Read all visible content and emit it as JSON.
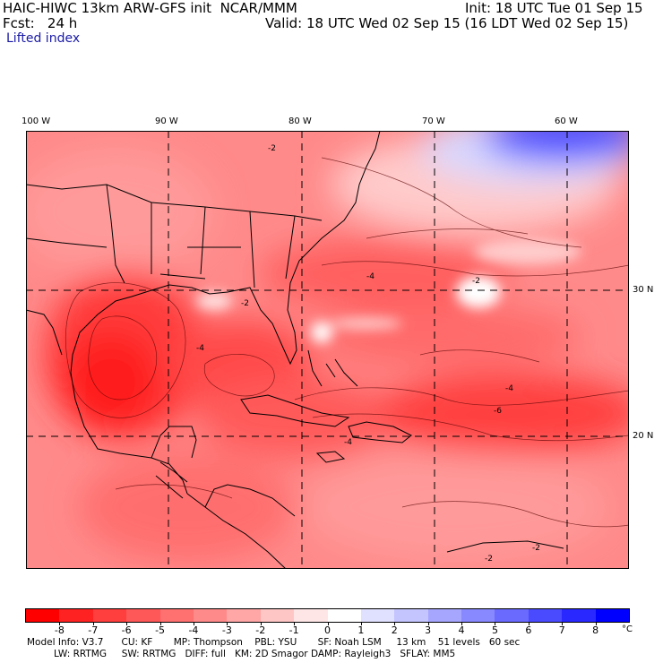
{
  "header": {
    "title": "HAIC-HIWC 13km ARW-GFS init  NCAR/MMM",
    "init": "Init: 18 UTC Tue 01 Sep 15",
    "fcst": "Fcst:   24 h",
    "valid": "Valid: 18 UTC Wed 02 Sep 15 (16 LDT Wed 02 Sep 15)",
    "field": "Lifted index"
  },
  "map": {
    "lon_labels": [
      "100 W",
      "90 W",
      "80 W",
      "70 W",
      "60 W"
    ],
    "lat_labels": [
      "30 N",
      "20 N"
    ],
    "contour_labels": [
      "-2",
      "-2",
      "-2",
      "-4",
      "-4",
      "-4",
      "-4",
      "-6",
      "-2",
      "-2"
    ]
  },
  "colorbar": {
    "labels": [
      "-8",
      "-7",
      "-6",
      "-5",
      "-4",
      "-3",
      "-2",
      "-1",
      "0",
      "1",
      "2",
      "3",
      "4",
      "5",
      "6",
      "7",
      "8"
    ],
    "unit": "°C",
    "colors": [
      "#ff0000",
      "#ff2222",
      "#ff3e3e",
      "#ff5858",
      "#ff7070",
      "#ff8a8a",
      "#ffa6a6",
      "#ffc6c6",
      "#ffe6e6",
      "#ffffff",
      "#e0e0ff",
      "#c4c4ff",
      "#a6a6ff",
      "#8888ff",
      "#6a6aff",
      "#4a4aff",
      "#2828ff",
      "#0000ff"
    ]
  },
  "model_info": {
    "line1": "Model Info: V3.7      CU: KF       MP: Thompson    PBL: YSU       SF: Noah LSM     13 km    51 levels   60 sec",
    "line2": "         LW: RRTMG     SW: RRTMG   DIFF: full   KM: 2D Smagor DAMP: Rayleigh3   SFLAY: MM5"
  }
}
